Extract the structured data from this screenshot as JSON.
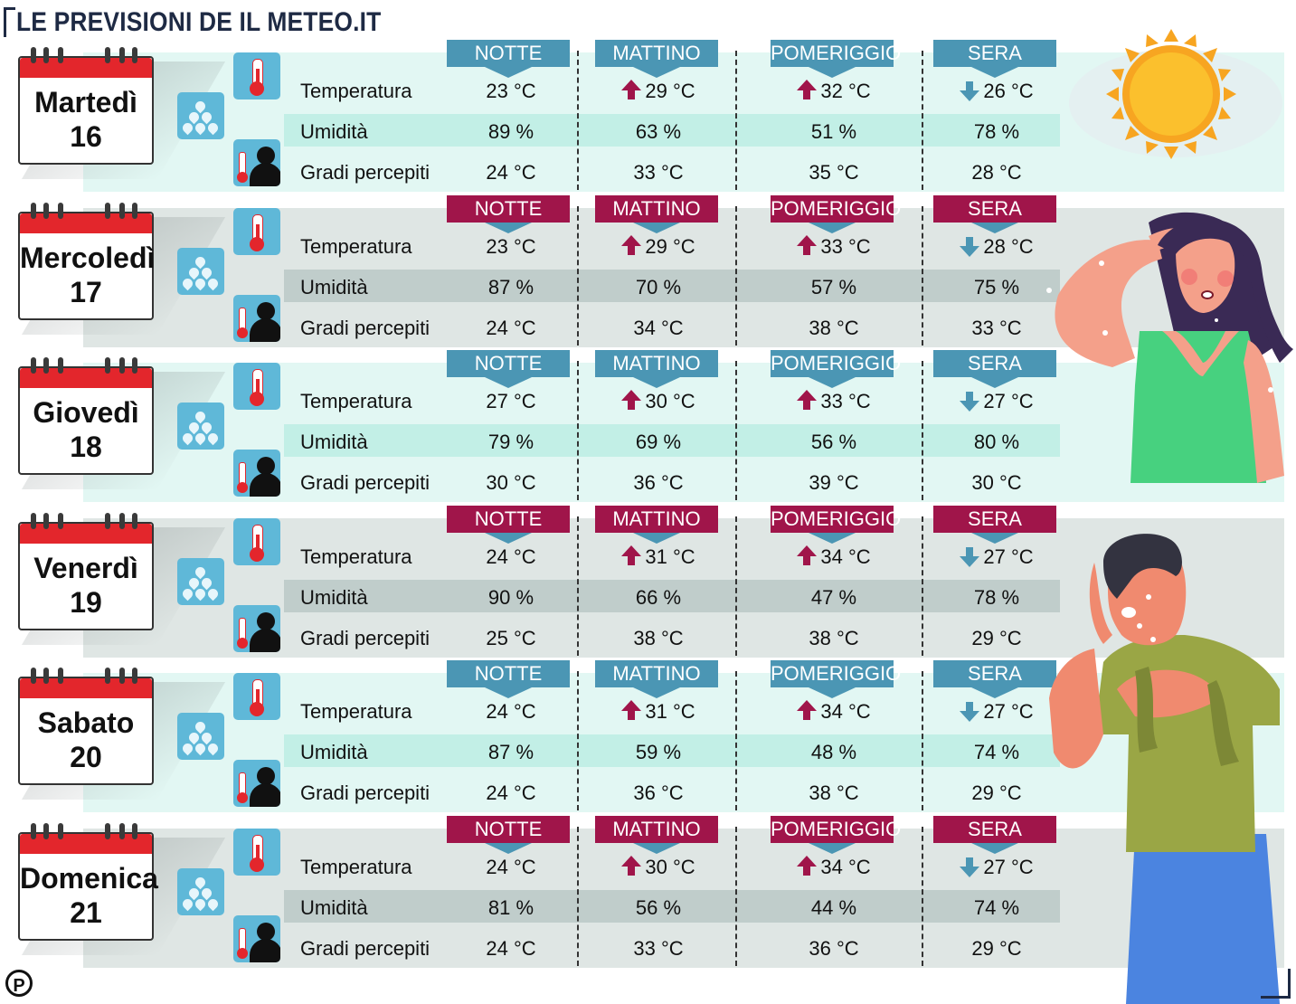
{
  "title": "LE PREVISIONI DE IL METEO.IT",
  "headers": [
    "NOTTE",
    "MATTINO",
    "POMERIGGIO",
    "SERA"
  ],
  "row_labels": {
    "temperature": "Temperatura",
    "humidity": "Umidità",
    "feels": "Gradi percepiti"
  },
  "colors": {
    "header_blue": "#4b96b4",
    "header_red": "#a0154a",
    "band_teal": "#e2f7f3",
    "band_gray": "#dfe6e4",
    "calendar_red": "#e3262c",
    "icon_blue": "#5fb8d8"
  },
  "icons": [
    "calendar-icon",
    "humidity-drops-icon",
    "thermometer-icon",
    "feels-like-person-icon",
    "trend-up-arrow-icon",
    "trend-down-arrow-icon",
    "sun-illustration",
    "hot-woman-illustration",
    "sweating-man-illustration",
    "publisher-logo"
  ],
  "days": [
    {
      "day_name": "Martedì",
      "day_num": "16",
      "theme": "teal",
      "temperature": [
        "23 °C",
        "29 °C",
        "32 °C",
        "26 °C"
      ],
      "humidity": [
        "89 %",
        "63 %",
        "51 %",
        "78 %"
      ],
      "feels": [
        "24 °C",
        "33 °C",
        "35 °C",
        "28 °C"
      ]
    },
    {
      "day_name": "Mercoledì",
      "day_num": "17",
      "theme": "gray",
      "temperature": [
        "23 °C",
        "29 °C",
        "33 °C",
        "28 °C"
      ],
      "humidity": [
        "87 %",
        "70 %",
        "57 %",
        "75 %"
      ],
      "feels": [
        "24 °C",
        "34 °C",
        "38 °C",
        "33 °C"
      ]
    },
    {
      "day_name": "Giovedì",
      "day_num": "18",
      "theme": "teal",
      "temperature": [
        "27 °C",
        "30 °C",
        "33 °C",
        "27 °C"
      ],
      "humidity": [
        "79 %",
        "69 %",
        "56 %",
        "80 %"
      ],
      "feels": [
        "30 °C",
        "36 °C",
        "39 °C",
        "30 °C"
      ]
    },
    {
      "day_name": "Venerdì",
      "day_num": "19",
      "theme": "gray",
      "temperature": [
        "24 °C",
        "31 °C",
        "34 °C",
        "27 °C"
      ],
      "humidity": [
        "90 %",
        "66 %",
        "47 %",
        "78 %"
      ],
      "feels": [
        "25 °C",
        "38 °C",
        "38 °C",
        "29 °C"
      ]
    },
    {
      "day_name": "Sabato",
      "day_num": "20",
      "theme": "teal",
      "temperature": [
        "24 °C",
        "31 °C",
        "34 °C",
        "27 °C"
      ],
      "humidity": [
        "87 %",
        "59 %",
        "48 %",
        "74 %"
      ],
      "feels": [
        "24 °C",
        "36 °C",
        "38 °C",
        "29 °C"
      ]
    },
    {
      "day_name": "Domenica",
      "day_num": "21",
      "theme": "gray",
      "temperature": [
        "24 °C",
        "30 °C",
        "34 °C",
        "27 °C"
      ],
      "humidity": [
        "81 %",
        "56 %",
        "44 %",
        "74 %"
      ],
      "feels": [
        "24 °C",
        "33 °C",
        "36 °C",
        "29 °C"
      ]
    }
  ],
  "trend": [
    "none",
    "up",
    "up",
    "down"
  ]
}
